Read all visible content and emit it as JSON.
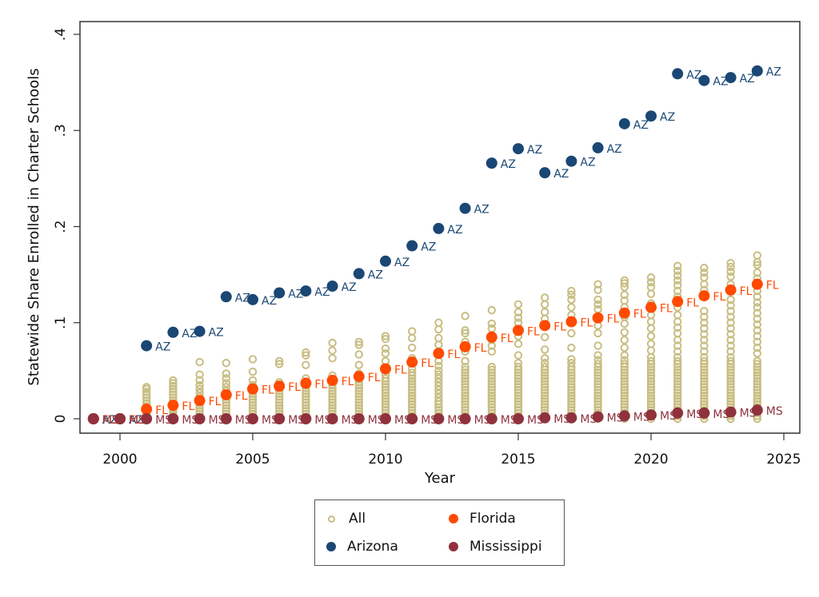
{
  "chart_data": {
    "type": "scatter",
    "title": "",
    "xlabel": "Year",
    "ylabel": "Statewide Share Enrolled in Charter Schools",
    "xlim": [
      1998.5,
      2025.5
    ],
    "ylim": [
      -0.015,
      0.415
    ],
    "x_ticks": [
      2000,
      2005,
      2010,
      2015,
      2020,
      2025
    ],
    "x_tick_labels": [
      "2000",
      "2005",
      "2010",
      "2015",
      "2020",
      "2025"
    ],
    "y_ticks": [
      0,
      0.1,
      0.2,
      0.3,
      0.4
    ],
    "y_tick_labels": [
      "0",
      ".1",
      ".2",
      ".3",
      ".4"
    ],
    "grid": false,
    "legend_placement": "bottom-center",
    "legend": [
      {
        "name": "All",
        "marker": "hollow-circle",
        "color": "#c8bd82"
      },
      {
        "name": "Florida",
        "marker": "filled-circle",
        "color": "#ff4a00"
      },
      {
        "name": "Arizona",
        "marker": "filled-circle",
        "color": "#1a4774"
      },
      {
        "name": "Mississippi",
        "marker": "filled-circle",
        "color": "#8f323d"
      }
    ],
    "colors": {
      "all": "#c8bd82",
      "florida": "#ff4a00",
      "arizona": "#1a4774",
      "mississippi": "#8f323d"
    },
    "series": [
      {
        "name": "Arizona",
        "label": "AZ",
        "x": [
          1999,
          2000,
          2001,
          2002,
          2003,
          2004,
          2005,
          2006,
          2007,
          2008,
          2009,
          2010,
          2011,
          2012,
          2013,
          2014,
          2015,
          2016,
          2017,
          2018,
          2019,
          2020,
          2021,
          2022,
          2023,
          2024
        ],
        "y": [
          0.0,
          0.0,
          0.076,
          0.09,
          0.091,
          0.127,
          0.124,
          0.131,
          0.133,
          0.138,
          0.151,
          0.164,
          0.18,
          0.198,
          0.219,
          0.266,
          0.281,
          0.256,
          0.268,
          0.282,
          0.307,
          0.315,
          0.359,
          0.352,
          0.355,
          0.362
        ]
      },
      {
        "name": "Florida",
        "label": "FL",
        "x": [
          1999,
          2000,
          2001,
          2002,
          2003,
          2004,
          2005,
          2006,
          2007,
          2008,
          2009,
          2010,
          2011,
          2012,
          2013,
          2014,
          2015,
          2016,
          2017,
          2018,
          2019,
          2020,
          2021,
          2022,
          2023,
          2024
        ],
        "y": [
          0.0,
          0.0,
          0.01,
          0.014,
          0.019,
          0.025,
          0.031,
          0.034,
          0.037,
          0.04,
          0.044,
          0.052,
          0.059,
          0.068,
          0.075,
          0.085,
          0.092,
          0.097,
          0.101,
          0.105,
          0.11,
          0.116,
          0.122,
          0.128,
          0.134,
          0.14
        ]
      },
      {
        "name": "Mississippi",
        "label": "MS",
        "x": [
          1999,
          2000,
          2001,
          2002,
          2003,
          2004,
          2005,
          2006,
          2007,
          2008,
          2009,
          2010,
          2011,
          2012,
          2013,
          2014,
          2015,
          2016,
          2017,
          2018,
          2019,
          2020,
          2021,
          2022,
          2023,
          2024
        ],
        "y": [
          0.0,
          0.0,
          0.0,
          0.0,
          0.0,
          0.0,
          0.0,
          0.0,
          0.0,
          0.0,
          0.0,
          0.0,
          0.0,
          0.0,
          0.0,
          0.0,
          0.0,
          0.001,
          0.001,
          0.002,
          0.003,
          0.004,
          0.006,
          0.006,
          0.007,
          0.009
        ]
      },
      {
        "name": "All",
        "marker": "hollow-circle",
        "columns": [
          {
            "x": 1999,
            "y": [
              0.0,
              0.0,
              0.0
            ]
          },
          {
            "x": 2000,
            "y": [
              0.0,
              0.0,
              0.0,
              0.0
            ]
          },
          {
            "x": 2001,
            "y": [
              0.0,
              0.002,
              0.004,
              0.006,
              0.008,
              0.01,
              0.013,
              0.016,
              0.019,
              0.022,
              0.025,
              0.028,
              0.031,
              0.033
            ]
          },
          {
            "x": 2002,
            "y": [
              0.0,
              0.002,
              0.004,
              0.007,
              0.01,
              0.013,
              0.016,
              0.019,
              0.022,
              0.025,
              0.028,
              0.031,
              0.034,
              0.037,
              0.04
            ]
          },
          {
            "x": 2003,
            "y": [
              0.0,
              0.002,
              0.005,
              0.008,
              0.011,
              0.014,
              0.017,
              0.02,
              0.023,
              0.027,
              0.031,
              0.035,
              0.04,
              0.046,
              0.059
            ]
          },
          {
            "x": 2004,
            "y": [
              0.0,
              0.002,
              0.005,
              0.008,
              0.011,
              0.014,
              0.017,
              0.02,
              0.023,
              0.026,
              0.029,
              0.033,
              0.037,
              0.042,
              0.047,
              0.058
            ]
          },
          {
            "x": 2005,
            "y": [
              0.0,
              0.002,
              0.005,
              0.008,
              0.011,
              0.014,
              0.017,
              0.02,
              0.023,
              0.026,
              0.029,
              0.032,
              0.035,
              0.04,
              0.049,
              0.062
            ]
          },
          {
            "x": 2006,
            "y": [
              0.0,
              0.002,
              0.005,
              0.008,
              0.011,
              0.014,
              0.017,
              0.02,
              0.023,
              0.026,
              0.029,
              0.032,
              0.035,
              0.038,
              0.057,
              0.06
            ]
          },
          {
            "x": 2007,
            "y": [
              0.0,
              0.002,
              0.005,
              0.008,
              0.011,
              0.014,
              0.017,
              0.02,
              0.023,
              0.026,
              0.029,
              0.032,
              0.035,
              0.038,
              0.042,
              0.056,
              0.066,
              0.069
            ]
          },
          {
            "x": 2008,
            "y": [
              0.0,
              0.002,
              0.005,
              0.008,
              0.011,
              0.014,
              0.017,
              0.02,
              0.023,
              0.026,
              0.029,
              0.032,
              0.035,
              0.038,
              0.041,
              0.045,
              0.063,
              0.071,
              0.079
            ]
          },
          {
            "x": 2009,
            "y": [
              0.0,
              0.002,
              0.005,
              0.008,
              0.011,
              0.014,
              0.017,
              0.02,
              0.023,
              0.026,
              0.029,
              0.032,
              0.035,
              0.038,
              0.041,
              0.047,
              0.056,
              0.067,
              0.077,
              0.08
            ]
          },
          {
            "x": 2010,
            "y": [
              0.0,
              0.003,
              0.006,
              0.009,
              0.012,
              0.015,
              0.018,
              0.021,
              0.024,
              0.027,
              0.03,
              0.033,
              0.036,
              0.039,
              0.042,
              0.046,
              0.06,
              0.068,
              0.073,
              0.083,
              0.086
            ]
          },
          {
            "x": 2011,
            "y": [
              0.0,
              0.003,
              0.006,
              0.009,
              0.012,
              0.015,
              0.018,
              0.021,
              0.024,
              0.027,
              0.03,
              0.033,
              0.036,
              0.039,
              0.042,
              0.045,
              0.048,
              0.052,
              0.063,
              0.074,
              0.084,
              0.091
            ]
          },
          {
            "x": 2012,
            "y": [
              0.0,
              0.003,
              0.006,
              0.009,
              0.012,
              0.015,
              0.018,
              0.022,
              0.026,
              0.03,
              0.034,
              0.038,
              0.042,
              0.046,
              0.05,
              0.055,
              0.06,
              0.077,
              0.084,
              0.093,
              0.1
            ]
          },
          {
            "x": 2013,
            "y": [
              0.0,
              0.003,
              0.006,
              0.009,
              0.012,
              0.015,
              0.018,
              0.021,
              0.024,
              0.027,
              0.03,
              0.033,
              0.036,
              0.039,
              0.042,
              0.045,
              0.048,
              0.051,
              0.054,
              0.06,
              0.07,
              0.08,
              0.089,
              0.092,
              0.107
            ]
          },
          {
            "x": 2014,
            "y": [
              0.0,
              0.003,
              0.006,
              0.009,
              0.012,
              0.015,
              0.018,
              0.021,
              0.024,
              0.027,
              0.03,
              0.033,
              0.036,
              0.039,
              0.042,
              0.045,
              0.048,
              0.051,
              0.054,
              0.07,
              0.076,
              0.082,
              0.094,
              0.099,
              0.113
            ]
          },
          {
            "x": 2015,
            "y": [
              0.0,
              0.003,
              0.006,
              0.009,
              0.012,
              0.015,
              0.018,
              0.021,
              0.024,
              0.027,
              0.03,
              0.033,
              0.036,
              0.039,
              0.042,
              0.045,
              0.048,
              0.051,
              0.054,
              0.058,
              0.066,
              0.078,
              0.086,
              0.1,
              0.105,
              0.111,
              0.119
            ]
          },
          {
            "x": 2016,
            "y": [
              0.0,
              0.003,
              0.006,
              0.009,
              0.012,
              0.015,
              0.018,
              0.021,
              0.024,
              0.027,
              0.03,
              0.033,
              0.036,
              0.039,
              0.042,
              0.045,
              0.048,
              0.051,
              0.054,
              0.058,
              0.063,
              0.072,
              0.085,
              0.104,
              0.111,
              0.119,
              0.126
            ]
          },
          {
            "x": 2017,
            "y": [
              0.0,
              0.003,
              0.006,
              0.009,
              0.012,
              0.015,
              0.018,
              0.021,
              0.024,
              0.027,
              0.03,
              0.033,
              0.036,
              0.039,
              0.042,
              0.045,
              0.048,
              0.051,
              0.054,
              0.058,
              0.062,
              0.074,
              0.089,
              0.108,
              0.116,
              0.124,
              0.129,
              0.133
            ]
          },
          {
            "x": 2018,
            "y": [
              0.0,
              0.003,
              0.006,
              0.009,
              0.012,
              0.015,
              0.018,
              0.021,
              0.024,
              0.027,
              0.03,
              0.033,
              0.036,
              0.039,
              0.042,
              0.045,
              0.048,
              0.051,
              0.054,
              0.057,
              0.061,
              0.066,
              0.076,
              0.089,
              0.097,
              0.114,
              0.119,
              0.124,
              0.134,
              0.14
            ]
          },
          {
            "x": 2019,
            "y": [
              0.0,
              0.003,
              0.006,
              0.009,
              0.012,
              0.015,
              0.018,
              0.021,
              0.024,
              0.027,
              0.03,
              0.033,
              0.036,
              0.039,
              0.042,
              0.045,
              0.048,
              0.051,
              0.054,
              0.057,
              0.061,
              0.066,
              0.074,
              0.082,
              0.09,
              0.099,
              0.106,
              0.116,
              0.123,
              0.129,
              0.137,
              0.141,
              0.144
            ]
          },
          {
            "x": 2020,
            "y": [
              0.0,
              0.003,
              0.006,
              0.009,
              0.012,
              0.015,
              0.018,
              0.021,
              0.024,
              0.027,
              0.03,
              0.033,
              0.036,
              0.039,
              0.042,
              0.045,
              0.048,
              0.051,
              0.054,
              0.057,
              0.06,
              0.064,
              0.071,
              0.078,
              0.086,
              0.094,
              0.101,
              0.108,
              0.12,
              0.13,
              0.137,
              0.142,
              0.147
            ]
          },
          {
            "x": 2021,
            "y": [
              0.0,
              0.003,
              0.006,
              0.009,
              0.012,
              0.015,
              0.018,
              0.021,
              0.024,
              0.027,
              0.03,
              0.033,
              0.036,
              0.039,
              0.042,
              0.045,
              0.048,
              0.051,
              0.054,
              0.057,
              0.06,
              0.064,
              0.07,
              0.076,
              0.082,
              0.089,
              0.095,
              0.101,
              0.108,
              0.116,
              0.127,
              0.133,
              0.139,
              0.144,
              0.149,
              0.154,
              0.159
            ]
          },
          {
            "x": 2022,
            "y": [
              0.0,
              0.003,
              0.006,
              0.009,
              0.012,
              0.015,
              0.018,
              0.021,
              0.024,
              0.027,
              0.03,
              0.033,
              0.036,
              0.039,
              0.042,
              0.045,
              0.048,
              0.051,
              0.054,
              0.057,
              0.06,
              0.064,
              0.07,
              0.076,
              0.082,
              0.088,
              0.094,
              0.1,
              0.106,
              0.112,
              0.134,
              0.14,
              0.147,
              0.152,
              0.157
            ]
          },
          {
            "x": 2023,
            "y": [
              0.0,
              0.003,
              0.006,
              0.009,
              0.012,
              0.015,
              0.018,
              0.021,
              0.024,
              0.027,
              0.03,
              0.033,
              0.036,
              0.039,
              0.042,
              0.045,
              0.048,
              0.051,
              0.054,
              0.057,
              0.06,
              0.064,
              0.07,
              0.076,
              0.082,
              0.088,
              0.094,
              0.1,
              0.106,
              0.112,
              0.118,
              0.124,
              0.14,
              0.148,
              0.153,
              0.158,
              0.162
            ]
          },
          {
            "x": 2024,
            "y": [
              0.0,
              0.003,
              0.006,
              0.009,
              0.012,
              0.015,
              0.018,
              0.021,
              0.024,
              0.027,
              0.03,
              0.033,
              0.036,
              0.039,
              0.042,
              0.045,
              0.048,
              0.051,
              0.054,
              0.057,
              0.06,
              0.068,
              0.074,
              0.08,
              0.086,
              0.092,
              0.098,
              0.104,
              0.11,
              0.116,
              0.121,
              0.127,
              0.133,
              0.146,
              0.152,
              0.16,
              0.163,
              0.17
            ]
          }
        ]
      }
    ]
  }
}
